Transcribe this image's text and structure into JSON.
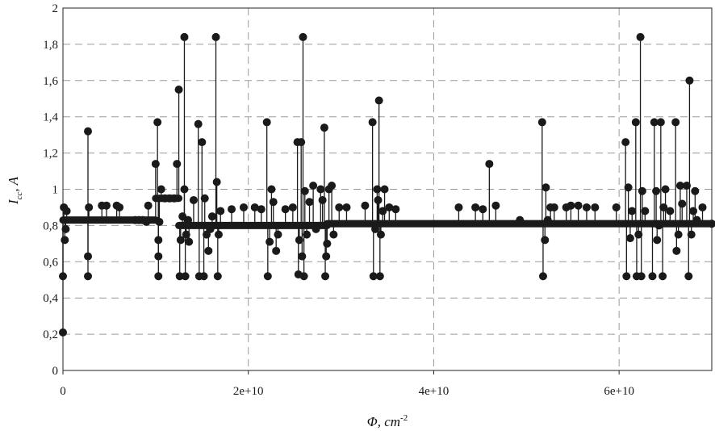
{
  "chart_data": {
    "type": "scatter",
    "title": "",
    "xlabel": "Φ, cm",
    "xlabel_sup": "-2",
    "ylabel": "I",
    "ylabel_sub": "cc",
    "ylabel_unit": ", A",
    "xlim": [
      0,
      70000000000
    ],
    "ylim": [
      0,
      2
    ],
    "x_ticks": [
      {
        "value": 0,
        "label": "0"
      },
      {
        "value": 20000000000,
        "label": "2e+10"
      },
      {
        "value": 40000000000,
        "label": "4e+10"
      },
      {
        "value": 60000000000,
        "label": "6e+10"
      }
    ],
    "y_ticks": [
      {
        "value": 0,
        "label": "0"
      },
      {
        "value": 0.2,
        "label": "0,2"
      },
      {
        "value": 0.4,
        "label": "0,4"
      },
      {
        "value": 0.6,
        "label": "0,6"
      },
      {
        "value": 0.8,
        "label": "0,8"
      },
      {
        "value": 1.0,
        "label": "1"
      },
      {
        "value": 1.2,
        "label": "1,2"
      },
      {
        "value": 1.4,
        "label": "1,4"
      },
      {
        "value": 1.6,
        "label": "1,6"
      },
      {
        "value": 1.8,
        "label": "1,8"
      },
      {
        "value": 2.0,
        "label": "2"
      }
    ],
    "grid": true,
    "legend": "none",
    "baseline": [
      {
        "x_from": 0,
        "x_to": 10000000000,
        "y": 0.83
      },
      {
        "x_from": 10000000000,
        "x_to": 12500000000,
        "y": 0.95
      },
      {
        "x_from": 12500000000,
        "x_to": 28500000000,
        "y": 0.8
      },
      {
        "x_from": 28500000000,
        "x_to": 70000000000,
        "y": 0.81
      }
    ],
    "series": [
      {
        "points": [
          [
            0,
            0.21
          ],
          [
            0,
            0.52
          ],
          [
            100000000,
            0.9
          ],
          [
            200000000,
            0.72
          ],
          [
            300000000,
            0.78
          ],
          [
            400000000,
            0.88
          ],
          [
            2700000000,
            1.32
          ],
          [
            2700000000,
            0.52
          ],
          [
            2700000000,
            0.63
          ],
          [
            2800000000,
            0.9
          ],
          [
            4200000000,
            0.91
          ],
          [
            4700000000,
            0.91
          ],
          [
            5800000000,
            0.91
          ],
          [
            6100000000,
            0.9
          ],
          [
            7800000000,
            0.83
          ],
          [
            8200000000,
            0.83
          ],
          [
            8600000000,
            0.83
          ],
          [
            9000000000,
            0.82
          ],
          [
            9200000000,
            0.91
          ],
          [
            10000000000,
            1.14
          ],
          [
            10200000000,
            1.37
          ],
          [
            10300000000,
            0.52
          ],
          [
            10300000000,
            0.63
          ],
          [
            10300000000,
            0.72
          ],
          [
            10400000000,
            0.82
          ],
          [
            10600000000,
            1.0
          ],
          [
            11000000000,
            0.95
          ],
          [
            11500000000,
            0.95
          ],
          [
            12000000000,
            0.95
          ],
          [
            12300000000,
            1.14
          ],
          [
            12500000000,
            1.55
          ],
          [
            12600000000,
            0.52
          ],
          [
            12700000000,
            0.72
          ],
          [
            12900000000,
            0.85
          ],
          [
            13100000000,
            1.84
          ],
          [
            13100000000,
            1.0
          ],
          [
            13200000000,
            0.52
          ],
          [
            13300000000,
            0.75
          ],
          [
            13500000000,
            0.83
          ],
          [
            13600000000,
            0.71
          ],
          [
            14100000000,
            0.94
          ],
          [
            14600000000,
            1.36
          ],
          [
            14700000000,
            0.52
          ],
          [
            15000000000,
            1.26
          ],
          [
            15200000000,
            0.52
          ],
          [
            15300000000,
            0.95
          ],
          [
            15500000000,
            0.75
          ],
          [
            15700000000,
            0.66
          ],
          [
            15900000000,
            0.78
          ],
          [
            16100000000,
            0.85
          ],
          [
            16500000000,
            1.84
          ],
          [
            16600000000,
            1.04
          ],
          [
            16700000000,
            0.52
          ],
          [
            16800000000,
            0.75
          ],
          [
            17000000000,
            0.88
          ],
          [
            18200000000,
            0.89
          ],
          [
            19500000000,
            0.9
          ],
          [
            20700000000,
            0.9
          ],
          [
            21400000000,
            0.89
          ],
          [
            22000000000,
            1.37
          ],
          [
            22100000000,
            0.52
          ],
          [
            22300000000,
            0.71
          ],
          [
            22500000000,
            1.0
          ],
          [
            22700000000,
            0.93
          ],
          [
            23000000000,
            0.66
          ],
          [
            23200000000,
            0.75
          ],
          [
            24000000000,
            0.89
          ],
          [
            24800000000,
            0.9
          ],
          [
            25300000000,
            1.26
          ],
          [
            25400000000,
            0.53
          ],
          [
            25500000000,
            0.72
          ],
          [
            25700000000,
            1.26
          ],
          [
            25800000000,
            0.63
          ],
          [
            25900000000,
            1.84
          ],
          [
            26000000000,
            0.52
          ],
          [
            26100000000,
            0.99
          ],
          [
            26300000000,
            0.75
          ],
          [
            26600000000,
            0.93
          ],
          [
            27000000000,
            1.02
          ],
          [
            27300000000,
            0.78
          ],
          [
            27800000000,
            1.0
          ],
          [
            28000000000,
            0.94
          ],
          [
            28200000000,
            1.34
          ],
          [
            28300000000,
            0.52
          ],
          [
            28400000000,
            0.63
          ],
          [
            28500000000,
            0.7
          ],
          [
            28700000000,
            1.0
          ],
          [
            29000000000,
            1.02
          ],
          [
            29200000000,
            0.75
          ],
          [
            29800000000,
            0.9
          ],
          [
            30600000000,
            0.9
          ],
          [
            32600000000,
            0.91
          ],
          [
            33400000000,
            1.37
          ],
          [
            33500000000,
            0.52
          ],
          [
            33700000000,
            0.78
          ],
          [
            33900000000,
            1.0
          ],
          [
            34000000000,
            0.94
          ],
          [
            34100000000,
            1.49
          ],
          [
            34200000000,
            0.52
          ],
          [
            34300000000,
            0.75
          ],
          [
            34500000000,
            0.88
          ],
          [
            34700000000,
            1.0
          ],
          [
            35200000000,
            0.9
          ],
          [
            35900000000,
            0.89
          ],
          [
            42700000000,
            0.9
          ],
          [
            44500000000,
            0.9
          ],
          [
            45300000000,
            0.89
          ],
          [
            46000000000,
            1.14
          ],
          [
            46700000000,
            0.91
          ],
          [
            49300000000,
            0.83
          ],
          [
            51700000000,
            1.37
          ],
          [
            51800000000,
            0.52
          ],
          [
            52000000000,
            0.72
          ],
          [
            52100000000,
            1.01
          ],
          [
            52300000000,
            0.83
          ],
          [
            52600000000,
            0.9
          ],
          [
            53000000000,
            0.9
          ],
          [
            54300000000,
            0.9
          ],
          [
            54800000000,
            0.91
          ],
          [
            55600000000,
            0.91
          ],
          [
            56500000000,
            0.9
          ],
          [
            57400000000,
            0.9
          ],
          [
            59700000000,
            0.9
          ],
          [
            60700000000,
            1.26
          ],
          [
            60800000000,
            0.52
          ],
          [
            61000000000,
            1.01
          ],
          [
            61200000000,
            0.73
          ],
          [
            61400000000,
            0.88
          ],
          [
            61800000000,
            1.37
          ],
          [
            61900000000,
            0.52
          ],
          [
            62100000000,
            0.75
          ],
          [
            62300000000,
            1.84
          ],
          [
            62400000000,
            0.52
          ],
          [
            62500000000,
            0.99
          ],
          [
            62800000000,
            0.88
          ],
          [
            63600000000,
            0.52
          ],
          [
            63800000000,
            1.37
          ],
          [
            64000000000,
            0.99
          ],
          [
            64100000000,
            0.72
          ],
          [
            64300000000,
            0.8
          ],
          [
            64500000000,
            1.37
          ],
          [
            64700000000,
            0.52
          ],
          [
            64800000000,
            0.9
          ],
          [
            65000000000,
            1.0
          ],
          [
            65500000000,
            0.88
          ],
          [
            66100000000,
            1.37
          ],
          [
            66200000000,
            0.66
          ],
          [
            66400000000,
            0.75
          ],
          [
            66600000000,
            1.02
          ],
          [
            66800000000,
            0.92
          ],
          [
            67300000000,
            1.02
          ],
          [
            67500000000,
            0.52
          ],
          [
            67600000000,
            1.6
          ],
          [
            67800000000,
            0.75
          ],
          [
            68000000000,
            0.88
          ],
          [
            68200000000,
            0.99
          ],
          [
            68400000000,
            0.83
          ],
          [
            69000000000,
            0.9
          ],
          [
            70000000000,
            0.81
          ]
        ]
      }
    ]
  }
}
